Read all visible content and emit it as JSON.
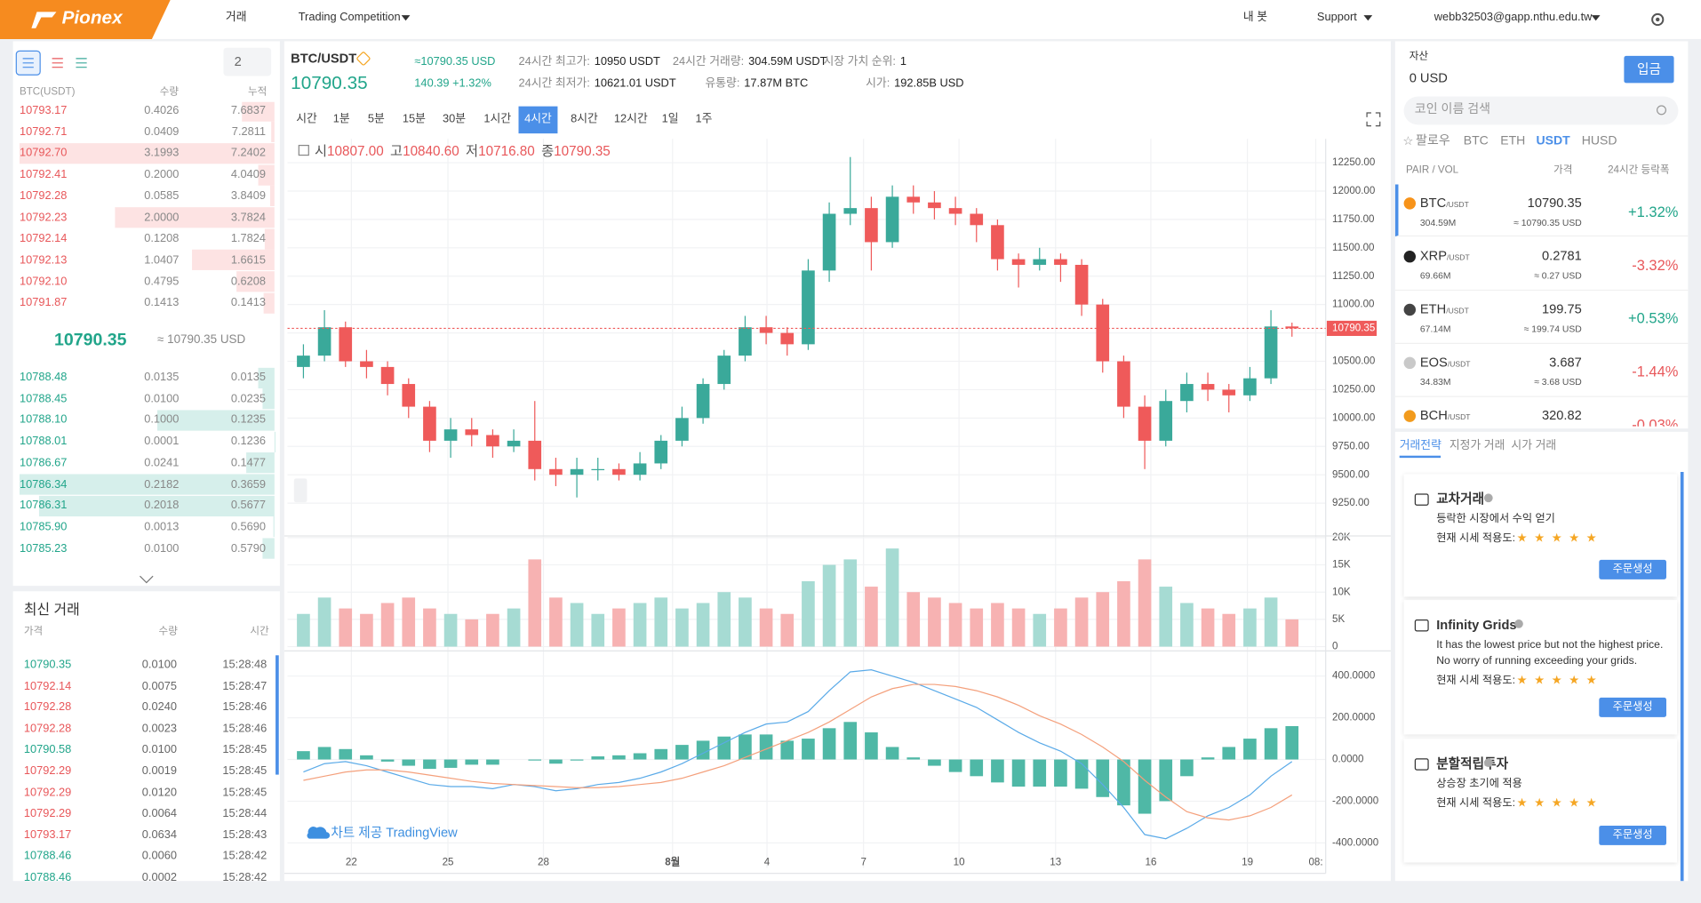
{
  "header": {
    "logo": "Pionex",
    "nav": [
      "거래",
      "Trading Competition"
    ],
    "right": [
      "내 봇",
      "Support",
      "webb32503@gapp.nthu.edu.tw"
    ]
  },
  "orderbook": {
    "precision": "2",
    "headers": [
      "BTC(USDT)",
      "수량",
      "누적"
    ],
    "asks": [
      [
        "10793.17",
        "0.4026",
        "7.6837"
      ],
      [
        "10792.71",
        "0.0409",
        "7.2811"
      ],
      [
        "10792.70",
        "3.1993",
        "7.2402"
      ],
      [
        "10792.41",
        "0.2000",
        "4.0409"
      ],
      [
        "10792.28",
        "0.0585",
        "3.8409"
      ],
      [
        "10792.23",
        "2.0000",
        "3.7824"
      ],
      [
        "10792.14",
        "0.1208",
        "1.7824"
      ],
      [
        "10792.13",
        "1.0407",
        "1.6615"
      ],
      [
        "10792.10",
        "0.4795",
        "0.6208"
      ],
      [
        "10791.87",
        "0.1413",
        "0.1413"
      ]
    ],
    "mid_price": "10790.35",
    "mid_usd": "≈ 10790.35 USD",
    "bids": [
      [
        "10788.48",
        "0.0135",
        "0.0135"
      ],
      [
        "10788.45",
        "0.0100",
        "0.0235"
      ],
      [
        "10788.10",
        "0.1000",
        "0.1235"
      ],
      [
        "10788.01",
        "0.0001",
        "0.1236"
      ],
      [
        "10786.67",
        "0.0241",
        "0.1477"
      ],
      [
        "10786.34",
        "0.2182",
        "0.3659"
      ],
      [
        "10786.31",
        "0.2018",
        "0.5677"
      ],
      [
        "10785.90",
        "0.0013",
        "0.5690"
      ],
      [
        "10785.23",
        "0.0100",
        "0.5790"
      ]
    ]
  },
  "trades": {
    "title": "최신 거래",
    "headers": [
      "가격",
      "수량",
      "시간"
    ],
    "rows": [
      [
        "10790.35",
        "0.0100",
        "15:28:48",
        "buy"
      ],
      [
        "10792.14",
        "0.0075",
        "15:28:47",
        "sell"
      ],
      [
        "10792.28",
        "0.0240",
        "15:28:46",
        "sell"
      ],
      [
        "10792.28",
        "0.0023",
        "15:28:46",
        "sell"
      ],
      [
        "10790.58",
        "0.0100",
        "15:28:45",
        "buy"
      ],
      [
        "10792.29",
        "0.0019",
        "15:28:45",
        "sell"
      ],
      [
        "10792.29",
        "0.0120",
        "15:28:45",
        "sell"
      ],
      [
        "10792.29",
        "0.0064",
        "15:28:44",
        "sell"
      ],
      [
        "10793.17",
        "0.0634",
        "15:28:43",
        "sell"
      ],
      [
        "10788.46",
        "0.0060",
        "15:28:42",
        "buy"
      ],
      [
        "10788.46",
        "0.0002",
        "15:28:42",
        "buy"
      ]
    ]
  },
  "ticker": {
    "pair": "BTC/USDT",
    "price": "10790.35",
    "usd": "≈10790.35 USD",
    "change": "140.39 +1.32%",
    "stats": [
      {
        "label": "24시간 최고가:",
        "value": "10950 USDT"
      },
      {
        "label": "24시간 최저가:",
        "value": "10621.01 USDT"
      },
      {
        "label": "24시간 거래량:",
        "value": "304.59M USDT"
      },
      {
        "label": "유통량:",
        "value": "17.87M BTC"
      },
      {
        "label": "시장 가치 순위:",
        "value": "1"
      },
      {
        "label": "시가:",
        "value": "192.85B USD"
      }
    ]
  },
  "intervals": {
    "items": [
      "시간",
      "1분",
      "5분",
      "15분",
      "30분",
      "1시간",
      "4시간",
      "8시간",
      "12시간",
      "1일",
      "1주"
    ],
    "active": 6
  },
  "ohlc": [
    {
      "label": "시",
      "value": "10807.00"
    },
    {
      "label": "고",
      "value": "10840.60"
    },
    {
      "label": "저",
      "value": "10716.80"
    },
    {
      "label": "종",
      "value": "10790.35"
    }
  ],
  "chart_data": {
    "type": "candlestick",
    "watermark": "차트 제공 TradingView",
    "open": [
      10450,
      10550,
      10800,
      10500,
      10450,
      10300,
      10100,
      9800,
      9900,
      9850,
      9750,
      9800,
      9550,
      9500,
      9550,
      9550,
      9500,
      9600,
      9800,
      10000,
      10300,
      10550,
      10800,
      10750,
      10650,
      11300,
      11800,
      11850,
      11550,
      11950,
      11900,
      11850,
      11800,
      11700,
      11400,
      11350,
      11400,
      11350,
      11000,
      10500,
      10100,
      9800,
      10150,
      10300,
      10250,
      10200,
      10350,
      10807
    ],
    "high": [
      10650,
      10950,
      10850,
      10600,
      10500,
      10350,
      10150,
      10000,
      10000,
      9900,
      9900,
      10150,
      9650,
      9650,
      9650,
      9600,
      9700,
      9850,
      10100,
      10350,
      10600,
      10900,
      10900,
      10800,
      11400,
      11900,
      12300,
      11950,
      12050,
      12050,
      12000,
      11950,
      11850,
      11750,
      11450,
      11500,
      11450,
      11400,
      11050,
      10550,
      10200,
      10250,
      10400,
      10400,
      10300,
      10450,
      10950,
      10840.6
    ],
    "low": [
      10350,
      10500,
      10450,
      10350,
      10200,
      10000,
      9700,
      9650,
      9750,
      9650,
      9700,
      9450,
      9400,
      9300,
      9450,
      9450,
      9450,
      9550,
      9750,
      9950,
      10250,
      10500,
      10650,
      10550,
      10600,
      11200,
      11700,
      11300,
      11500,
      11800,
      11750,
      11700,
      11550,
      11300,
      11150,
      11300,
      11200,
      10900,
      10400,
      10000,
      9550,
      9750,
      10050,
      10150,
      10050,
      10150,
      10300,
      10716.8
    ],
    "close": [
      10550,
      10800,
      10500,
      10450,
      10300,
      10100,
      9800,
      9900,
      9850,
      9750,
      9800,
      9550,
      9500,
      9550,
      9550,
      9500,
      9600,
      9800,
      10000,
      10300,
      10550,
      10800,
      10750,
      10650,
      11300,
      11800,
      11850,
      11550,
      11950,
      11900,
      11850,
      11800,
      11700,
      11400,
      11350,
      11400,
      11350,
      11000,
      10500,
      10100,
      9800,
      10150,
      10300,
      10250,
      10200,
      10350,
      10807,
      10790.35
    ],
    "volume": [
      6000,
      9000,
      7000,
      6000,
      8000,
      9000,
      7000,
      6000,
      5000,
      6000,
      7000,
      16000,
      9000,
      8000,
      6000,
      7000,
      8000,
      9000,
      7000,
      8000,
      10000,
      9000,
      7000,
      6000,
      12000,
      15000,
      16000,
      11000,
      18000,
      10000,
      9000,
      8000,
      7000,
      8000,
      7000,
      6000,
      7000,
      9000,
      10000,
      12000,
      16000,
      11000,
      8000,
      7000,
      6000,
      7000,
      9000,
      5000
    ],
    "macd": [
      -60,
      -20,
      -10,
      -30,
      -60,
      -90,
      -120,
      -130,
      -130,
      -140,
      -120,
      -130,
      -150,
      -140,
      -120,
      -110,
      -90,
      -60,
      -20,
      30,
      80,
      130,
      170,
      180,
      230,
      330,
      420,
      430,
      400,
      370,
      330,
      290,
      250,
      190,
      130,
      80,
      40,
      -20,
      -120,
      -230,
      -360,
      -380,
      -330,
      -270,
      -230,
      -170,
      -80,
      -10
    ],
    "signal": [
      -100,
      -80,
      -60,
      -50,
      -50,
      -60,
      -75,
      -90,
      -105,
      -115,
      -120,
      -125,
      -130,
      -135,
      -135,
      -130,
      -120,
      -110,
      -90,
      -60,
      -30,
      10,
      50,
      90,
      130,
      180,
      240,
      300,
      340,
      360,
      360,
      350,
      330,
      300,
      260,
      210,
      170,
      120,
      60,
      -10,
      -100,
      -180,
      -250,
      -280,
      -290,
      -270,
      -230,
      -170
    ],
    "histogram": [
      40,
      60,
      50,
      20,
      -10,
      -30,
      -45,
      -40,
      -25,
      -25,
      0,
      -5,
      -20,
      -5,
      15,
      20,
      30,
      50,
      70,
      90,
      110,
      120,
      120,
      90,
      100,
      150,
      180,
      130,
      60,
      10,
      -30,
      -60,
      -80,
      -110,
      -130,
      -130,
      -130,
      -140,
      -180,
      -220,
      -260,
      -200,
      -80,
      10,
      60,
      100,
      150,
      160
    ],
    "last_price": 10790.35,
    "xlim": [
      -0.5,
      48.5
    ],
    "xticks": [
      {
        "value": 2.28,
        "label": "22"
      },
      {
        "value": 6.87,
        "label": "25"
      },
      {
        "value": 11.41,
        "label": "28"
      },
      {
        "value": 17.55,
        "label": "8월"
      },
      {
        "value": 22.04,
        "label": "4"
      },
      {
        "value": 26.63,
        "label": "7"
      },
      {
        "value": 31.17,
        "label": "10"
      },
      {
        "value": 35.76,
        "label": "13"
      },
      {
        "value": 40.29,
        "label": "16"
      },
      {
        "value": 44.88,
        "label": "19"
      },
      {
        "value": 48.13,
        "label": "08:"
      }
    ],
    "ylim": [
      8980,
      12460
    ],
    "yticks": [
      {
        "value": 9250,
        "label": "9250.00"
      },
      {
        "value": 9500,
        "label": "9500.00"
      },
      {
        "value": 9750,
        "label": "9750.00"
      },
      {
        "value": 10000,
        "label": "10000.00"
      },
      {
        "value": 10250,
        "label": "10250.00"
      },
      {
        "value": 10500,
        "label": "10500.00"
      },
      {
        "value": 10750,
        "label": "10750.00"
      },
      {
        "value": 11000,
        "label": "11000.00"
      },
      {
        "value": 11250,
        "label": "11250.00"
      },
      {
        "value": 11500,
        "label": "11500.00"
      },
      {
        "value": 11750,
        "label": "11750.00"
      },
      {
        "value": 12000,
        "label": "12000.00"
      },
      {
        "value": 12250,
        "label": "12250.00"
      }
    ],
    "volume_ylim": [
      0,
      20500
    ],
    "volume_yticks": [
      0,
      {
        "value": 5000,
        "label": "5K"
      },
      {
        "value": 10000,
        "label": "10K"
      },
      {
        "value": 15000,
        "label": "15K"
      },
      {
        "value": 20000,
        "label": "20K"
      }
    ],
    "macd_ylim": [
      -520,
      510
    ],
    "macd_yticks": [
      {
        "value": -400,
        "label": "-400.0000"
      },
      {
        "value": -200,
        "label": "-200.0000"
      },
      {
        "value": 0,
        "label": "0.0000"
      },
      {
        "value": 200,
        "label": "200.0000"
      },
      {
        "value": 400,
        "label": "400.0000"
      }
    ],
    "grid": true,
    "up_color": "#3aa99a",
    "down_color": "#ef5a5a",
    "volume_up_color": "#a6dbd3",
    "volume_down_color": "#f7b2b2",
    "macd_color": "#5aaae8",
    "signal_color": "#f4a07c",
    "histogram_color": "#4fb8a6"
  },
  "market": {
    "asset_label": "자산",
    "asset": "0 USD",
    "deposit": "입금",
    "search": "코인 이름 검색",
    "tabs": [
      "팔로우",
      "BTC",
      "ETH",
      "USDT",
      "HUSD"
    ],
    "active_tab": 3,
    "headers": [
      "PAIR / VOL",
      "가격",
      "24시간 등락폭"
    ],
    "coins": [
      {
        "name": "BTC",
        "quote": "/USDT",
        "vol": "304.59M",
        "price": "10790.35",
        "usd": "≈ 10790.35 USD",
        "change": "+1.32%",
        "icon_color": "#f7931a"
      },
      {
        "name": "XRP",
        "quote": "/USDT",
        "vol": "69.66M",
        "price": "0.2781",
        "usd": "≈ 0.27 USD",
        "change": "-3.32%",
        "icon_color": "#222222"
      },
      {
        "name": "ETH",
        "quote": "/USDT",
        "vol": "67.14M",
        "price": "199.75",
        "usd": "≈ 199.74 USD",
        "change": "+0.53%",
        "icon_color": "#444444"
      },
      {
        "name": "EOS",
        "quote": "/USDT",
        "vol": "34.83M",
        "price": "3.687",
        "usd": "≈ 3.68 USD",
        "change": "-1.44%",
        "icon_color": "#c9c9c9"
      },
      {
        "name": "BCH",
        "quote": "/USDT",
        "price": "320.82",
        "change": "-0.03%",
        "icon_color": "#f29b1d"
      }
    ]
  },
  "bots": {
    "tabs": [
      "거래전략",
      "지정가 거래",
      "시가 거래"
    ],
    "active_tab": 0,
    "cards": [
      {
        "title": "교차거래",
        "description": [
          "등락한 시장에서 수익 얻기"
        ],
        "rating_label": "현재 시세 적용도:",
        "rating": 5,
        "button": "주문생성"
      },
      {
        "title": "Infinity Grids",
        "description": [
          "It has the lowest price but not the highest price.",
          "No worry of running exceeding your grids."
        ],
        "rating_label": "현재 시세 적용도:",
        "rating": 5,
        "button": "주문생성"
      },
      {
        "title": "분할적립투자",
        "description": [
          "상승장 초기에 적용"
        ],
        "rating_label": "현재 시세 적용도:",
        "rating": 5,
        "button": "주문생성"
      }
    ]
  }
}
